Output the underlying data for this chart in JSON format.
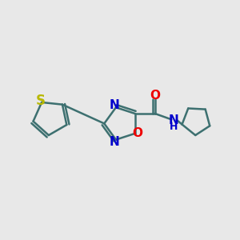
{
  "bg_color": "#e8e8e8",
  "bond_color": "#3d7070",
  "S_color": "#b8b800",
  "N_color": "#0000cc",
  "O_color": "#ee0000",
  "line_width": 1.8,
  "font_size": 11,
  "fig_width": 3.0,
  "fig_height": 3.0,
  "dpi": 100,
  "xlim": [
    0,
    10
  ],
  "ylim": [
    2,
    8
  ]
}
